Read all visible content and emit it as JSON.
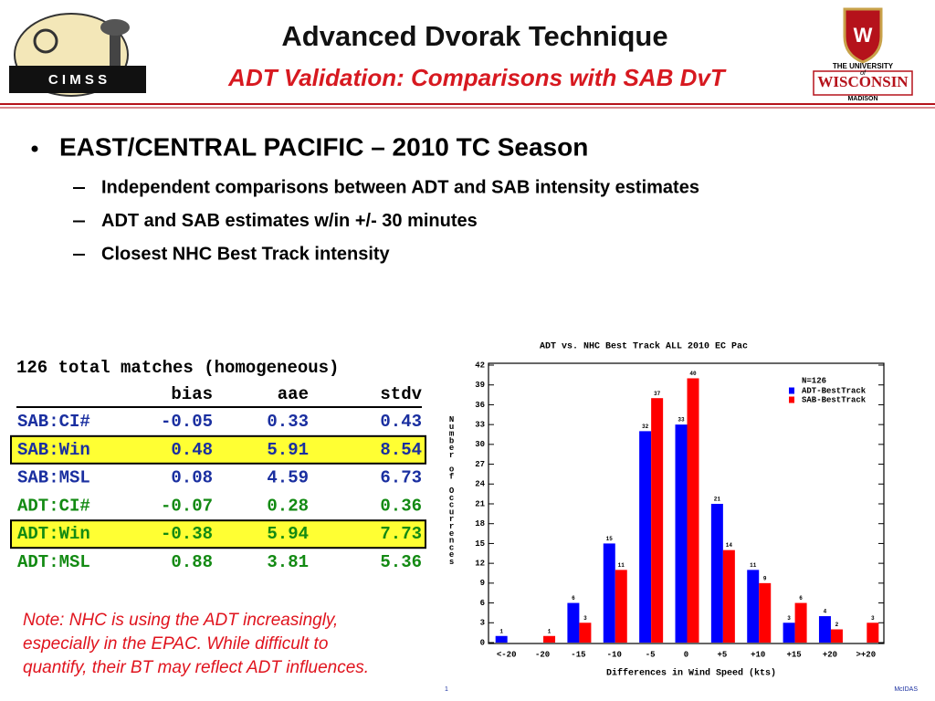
{
  "header": {
    "title": "Advanced Dvorak Technique",
    "subtitle": "ADT Validation: Comparisons with SAB DvT",
    "left_logo": "C I M S S",
    "right_logo": {
      "top": "THE UNIVERSITY",
      "of": "of",
      "name": "WISCONSIN",
      "bottom": "MADISON"
    }
  },
  "bullets": {
    "main": "EAST/CENTRAL PACIFIC –  2010 TC Season",
    "sub": [
      "Independent comparisons between ADT and SAB intensity estimates",
      "ADT and SAB estimates w/in +/- 30 minutes",
      "Closest NHC Best Track intensity"
    ]
  },
  "table": {
    "caption": "126 total matches (homogeneous)",
    "columns": [
      "bias",
      "aae",
      "stdv"
    ],
    "rows": [
      {
        "name": "SAB:CI#",
        "values": [
          -0.05,
          0.33,
          0.43
        ],
        "color": "#1a2fa0",
        "highlight": false
      },
      {
        "name": "SAB:Win",
        "values": [
          0.48,
          5.91,
          8.54
        ],
        "color": "#1a2fa0",
        "highlight": true
      },
      {
        "name": "SAB:MSL",
        "values": [
          0.08,
          4.59,
          6.73
        ],
        "color": "#1a2fa0",
        "highlight": false
      },
      {
        "name": "ADT:CI#",
        "values": [
          -0.07,
          0.28,
          0.36
        ],
        "color": "#138a13",
        "highlight": false
      },
      {
        "name": "ADT:Win",
        "values": [
          -0.38,
          5.94,
          7.73
        ],
        "color": "#138a13",
        "highlight": true
      },
      {
        "name": "ADT:MSL",
        "values": [
          0.88,
          3.81,
          5.36
        ],
        "color": "#138a13",
        "highlight": false
      }
    ]
  },
  "note": [
    "Note: NHC is using the ADT increasingly,",
    "especially in the EPAC. While difficult to",
    "quantify, their BT may reflect ADT influences."
  ],
  "footer": {
    "page": "1",
    "credit": "McIDAS"
  },
  "chart_data": {
    "type": "bar",
    "title": "ADT vs. NHC Best Track ALL 2010 EC Pac",
    "x_label": "Differences in Wind Speed (kts)",
    "y_label": "Number of Occurrences",
    "annotation": "N=126",
    "categories": [
      "<-20",
      "-20",
      "-15",
      "-10",
      "-5",
      "0",
      "+5",
      "+10",
      "+15",
      "+20",
      ">+20"
    ],
    "series": [
      {
        "name": "ADT-BestTrack",
        "color": "#0000ff",
        "values": [
          1,
          0,
          6,
          15,
          32,
          33,
          21,
          11,
          3,
          4,
          0
        ]
      },
      {
        "name": "SAB-BestTrack",
        "color": "#ff0000",
        "values": [
          0,
          1,
          3,
          11,
          37,
          40,
          14,
          9,
          6,
          2,
          3
        ]
      }
    ],
    "ylim": [
      0,
      42
    ],
    "yticks": [
      0,
      3,
      6,
      9,
      12,
      15,
      18,
      21,
      24,
      27,
      30,
      33,
      36,
      39,
      42
    ],
    "legend": "top-right"
  }
}
